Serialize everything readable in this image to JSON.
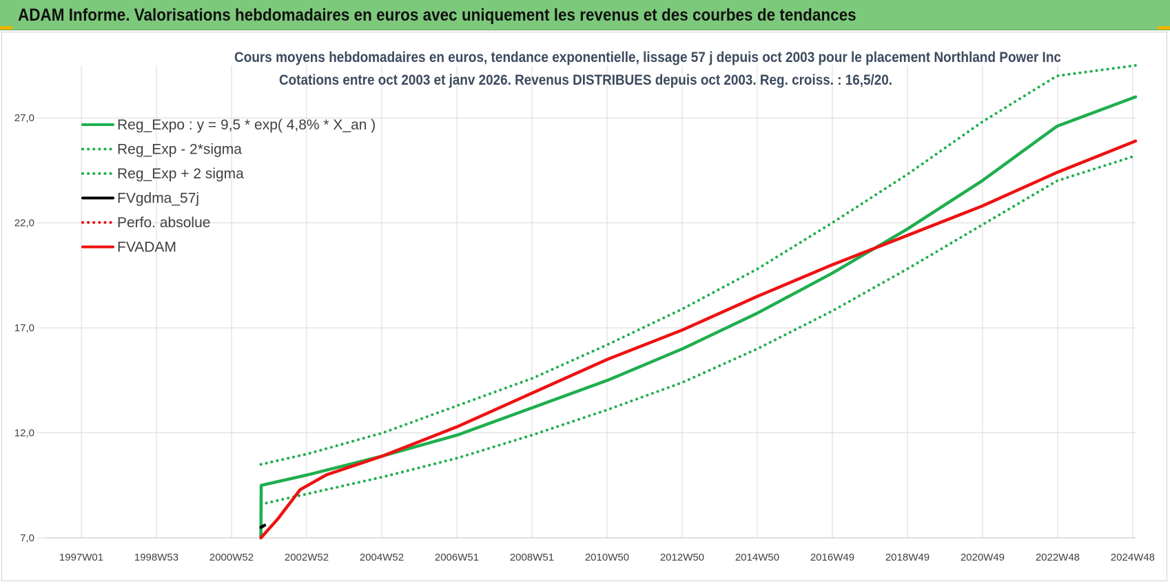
{
  "header": {
    "title": "ADAM Informe. Valorisations hebdomadaires en euros avec uniquement les revenus et des courbes de tendances"
  },
  "colors": {
    "header_bg": "#7dc97b",
    "reg_expo": "#1fae4e",
    "fvadam": "#ee1111",
    "fvgdma": "#000000",
    "grid": "#d9d9d9"
  },
  "chart_data": {
    "type": "line",
    "title_lines": [
      "Cours moyens hebdomadaires en euros, tendance exponentielle, lissage 57 j depuis oct 2003 pour le placement Northland Power Inc",
      "Cotations entre oct 2003 et janv 2026. Revenus DISTRIBUES depuis oct 2003. Reg. croiss. : 16,5/20."
    ],
    "x_ticks": [
      "1997W01",
      "1998W53",
      "2000W52",
      "2002W52",
      "2004W52",
      "2006W51",
      "2008W51",
      "2010W50",
      "2012W50",
      "2014W50",
      "2016W49",
      "2018W49",
      "2020W49",
      "2022W48",
      "2024W48"
    ],
    "x_range": [
      1997.0,
      2026.1
    ],
    "y_ticks": [
      "7,0",
      "12,0",
      "17,0",
      "22,0",
      "27,0"
    ],
    "ylim": [
      7.0,
      29.5
    ],
    "grid": true,
    "legend_position": "top-left",
    "series": [
      {
        "name": "Reg_Expo : y = 9,5 * exp( 4,8% *  X_an )",
        "style": "solid",
        "color": "#1fae4e",
        "x": [
          2002.75,
          2002.76,
          2004.0,
          2006.0,
          2008.0,
          2010.0,
          2012.0,
          2014.0,
          2016.0,
          2018.0,
          2020.0,
          2022.0,
          2024.0,
          2026.1
        ],
        "y": [
          7.0,
          9.5,
          10.0,
          10.9,
          11.9,
          13.2,
          14.5,
          16.0,
          17.7,
          19.6,
          21.7,
          24.0,
          26.6,
          28.0
        ]
      },
      {
        "name": "Reg_Exp - 2*sigma",
        "style": "dotted",
        "color": "#1fae4e",
        "x": [
          2002.75,
          2004.0,
          2006.0,
          2008.0,
          2010.0,
          2012.0,
          2014.0,
          2016.0,
          2018.0,
          2020.0,
          2022.0,
          2024.0,
          2026.1
        ],
        "y": [
          8.6,
          9.1,
          9.9,
          10.8,
          11.9,
          13.1,
          14.4,
          16.0,
          17.8,
          19.8,
          21.9,
          24.0,
          25.2
        ]
      },
      {
        "name": "Reg_Exp + 2 sigma",
        "style": "dotted",
        "color": "#1fae4e",
        "x": [
          2002.75,
          2004.0,
          2006.0,
          2008.0,
          2010.0,
          2012.0,
          2014.0,
          2016.0,
          2018.0,
          2020.0,
          2022.0,
          2024.0,
          2026.1
        ],
        "y": [
          10.5,
          11.0,
          12.0,
          13.3,
          14.6,
          16.2,
          17.9,
          19.8,
          22.0,
          24.3,
          26.8,
          29.0,
          29.5
        ]
      },
      {
        "name": "FVgdma_57j",
        "style": "solid",
        "color": "#000000",
        "x": [
          2002.75,
          2002.85
        ],
        "y": [
          7.5,
          7.6
        ]
      },
      {
        "name": "Perfo. absolue",
        "style": "dotted",
        "color": "#ee1111",
        "x": [],
        "y": []
      },
      {
        "name": "FVADAM",
        "style": "solid",
        "color": "#ee1111",
        "x": [
          2002.75,
          2003.2,
          2003.8,
          2004.5,
          2005.5,
          2006.0,
          2007.0,
          2008.0,
          2010.0,
          2012.0,
          2014.0,
          2016.0,
          2018.0,
          2020.0,
          2022.0,
          2024.0,
          2026.1
        ],
        "y": [
          7.0,
          7.9,
          9.3,
          10.0,
          10.6,
          10.9,
          11.6,
          12.3,
          13.9,
          15.5,
          16.9,
          18.5,
          20.0,
          21.4,
          22.8,
          24.4,
          25.9
        ]
      }
    ]
  }
}
